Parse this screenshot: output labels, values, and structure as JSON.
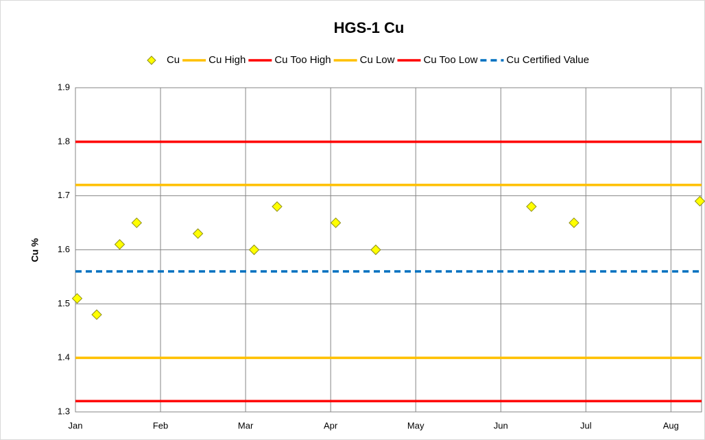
{
  "chart_data": {
    "type": "scatter",
    "title": "HGS-1 Cu",
    "y_label": "Cu %",
    "xlim": [
      0,
      7.36
    ],
    "xticks": [
      {
        "value": 0,
        "label": "Jan"
      },
      {
        "value": 1,
        "label": "Feb"
      },
      {
        "value": 2,
        "label": "Mar"
      },
      {
        "value": 3,
        "label": "Apr"
      },
      {
        "value": 4,
        "label": "May"
      },
      {
        "value": 5,
        "label": "Jun"
      },
      {
        "value": 6,
        "label": "Jul"
      },
      {
        "value": 7,
        "label": "Aug"
      }
    ],
    "ylim": [
      1.3,
      1.9
    ],
    "yticks": [
      {
        "value": 1.3,
        "label": "1.3"
      },
      {
        "value": 1.4,
        "label": "1.4"
      },
      {
        "value": 1.5,
        "label": "1.5"
      },
      {
        "value": 1.6,
        "label": "1.6"
      },
      {
        "value": 1.7,
        "label": "1.7"
      },
      {
        "value": 1.8,
        "label": "1.8"
      },
      {
        "value": 1.9,
        "label": "1.9"
      }
    ],
    "grid": true,
    "legend": "top",
    "series": [
      {
        "name": "Cu",
        "mode": "markers",
        "color": "#ffff00",
        "edge_color": "#8c8c1a",
        "x": [
          0.02,
          0.25,
          0.52,
          0.72,
          1.44,
          2.1,
          2.37,
          3.06,
          3.53,
          5.36,
          5.86,
          7.34
        ],
        "values": [
          1.51,
          1.48,
          1.61,
          1.65,
          1.63,
          1.6,
          1.68,
          1.65,
          1.6,
          1.68,
          1.65,
          1.69
        ]
      },
      {
        "name": "Cu High",
        "mode": "lines",
        "color": "#ffc000",
        "dashed": false,
        "x": [
          0,
          7.36
        ],
        "values": [
          1.72,
          1.72
        ]
      },
      {
        "name": "Cu Too High",
        "mode": "lines",
        "color": "#ff0000",
        "dashed": false,
        "x": [
          0,
          7.36
        ],
        "values": [
          1.8,
          1.8
        ]
      },
      {
        "name": "Cu Low",
        "mode": "lines",
        "color": "#ffc000",
        "dashed": false,
        "x": [
          0,
          7.36
        ],
        "values": [
          1.4,
          1.4
        ]
      },
      {
        "name": "Cu Too Low",
        "mode": "lines",
        "color": "#ff0000",
        "dashed": false,
        "x": [
          0,
          7.36
        ],
        "values": [
          1.32,
          1.32
        ]
      },
      {
        "name": "Cu Certified Value",
        "mode": "lines",
        "color": "#0070c0",
        "dashed": true,
        "x": [
          0,
          7.36
        ],
        "values": [
          1.56,
          1.56
        ]
      }
    ]
  }
}
